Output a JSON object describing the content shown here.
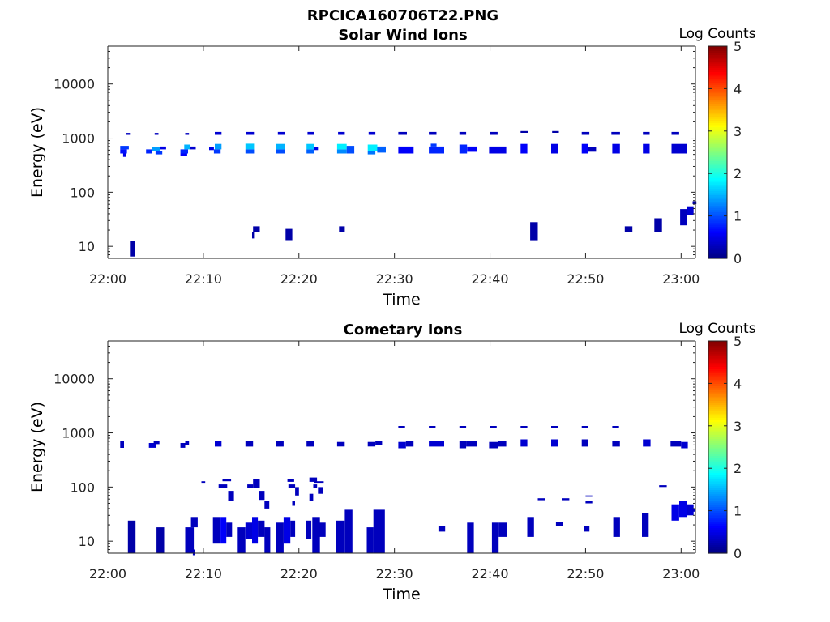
{
  "figure_title": "RPCICA160706T22.PNG",
  "colors": {
    "axis": "#222222",
    "background": "#ffffff"
  },
  "chart_data": [
    {
      "type": "heatmap",
      "title": "Solar Wind Ions",
      "xlabel": "Time",
      "ylabel": "Energy (eV)",
      "xticks": [
        "22:00",
        "22:10",
        "22:20",
        "22:30",
        "22:40",
        "22:50",
        "23:00"
      ],
      "yticks": [
        "10",
        "100",
        "1000",
        "10000"
      ],
      "yscale": "log",
      "ylim": [
        6,
        50000
      ],
      "xlim_minutes": [
        0,
        61.5
      ],
      "colorbar": {
        "label": "Log Counts",
        "ticks": [
          "0",
          "1",
          "2",
          "3",
          "4",
          "5"
        ],
        "range": [
          0,
          5
        ],
        "colormap": "jet"
      },
      "cells": [
        [
          1.9,
          2.4,
          1150,
          1250,
          0.3
        ],
        [
          4.9,
          5.3,
          1150,
          1250,
          0.3
        ],
        [
          8.1,
          8.5,
          1150,
          1250,
          0.3
        ],
        [
          11.2,
          11.9,
          1150,
          1300,
          0.4
        ],
        [
          14.5,
          15.3,
          1150,
          1300,
          0.4
        ],
        [
          17.8,
          18.5,
          1150,
          1300,
          0.4
        ],
        [
          20.9,
          21.6,
          1150,
          1300,
          0.4
        ],
        [
          24.1,
          24.8,
          1150,
          1300,
          0.4
        ],
        [
          27.3,
          28.0,
          1150,
          1300,
          0.4
        ],
        [
          30.4,
          31.3,
          1150,
          1300,
          0.3
        ],
        [
          33.6,
          34.4,
          1150,
          1300,
          0.3
        ],
        [
          36.8,
          37.5,
          1150,
          1300,
          0.3
        ],
        [
          40.0,
          40.8,
          1150,
          1300,
          0.3
        ],
        [
          43.2,
          44.0,
          1250,
          1350,
          0.2
        ],
        [
          46.5,
          47.2,
          1250,
          1350,
          0.2
        ],
        [
          49.6,
          50.4,
          1150,
          1300,
          0.3
        ],
        [
          52.7,
          53.6,
          1150,
          1300,
          0.3
        ],
        [
          56.0,
          56.7,
          1150,
          1300,
          0.3
        ],
        [
          59.0,
          59.8,
          1150,
          1300,
          0.3
        ],
        [
          1.3,
          2.2,
          620,
          720,
          0.9
        ],
        [
          1.3,
          2.0,
          520,
          620,
          0.7
        ],
        [
          1.6,
          1.9,
          450,
          520,
          0.5
        ],
        [
          4.0,
          4.6,
          520,
          620,
          0.8
        ],
        [
          4.6,
          5.5,
          570,
          680,
          1.4
        ],
        [
          5.0,
          5.7,
          500,
          570,
          0.9
        ],
        [
          5.5,
          6.1,
          620,
          700,
          0.5
        ],
        [
          7.6,
          8.4,
          520,
          620,
          0.8
        ],
        [
          8.0,
          8.6,
          620,
          760,
          1.5
        ],
        [
          7.6,
          8.3,
          470,
          520,
          0.6
        ],
        [
          8.6,
          9.2,
          620,
          700,
          0.4
        ],
        [
          11.1,
          11.8,
          520,
          620,
          0.9
        ],
        [
          11.2,
          11.9,
          620,
          780,
          1.4
        ],
        [
          10.6,
          11.1,
          600,
          680,
          0.5
        ],
        [
          14.4,
          15.3,
          520,
          620,
          1.0
        ],
        [
          14.4,
          15.3,
          620,
          790,
          1.6
        ],
        [
          17.6,
          18.5,
          520,
          620,
          1.0
        ],
        [
          17.6,
          18.5,
          620,
          780,
          1.5
        ],
        [
          20.8,
          21.6,
          520,
          620,
          1.1
        ],
        [
          20.8,
          21.6,
          620,
          780,
          1.6
        ],
        [
          21.6,
          22.0,
          600,
          680,
          0.5
        ],
        [
          24.0,
          25.0,
          520,
          620,
          1.3
        ],
        [
          24.0,
          25.0,
          620,
          780,
          1.8
        ],
        [
          25.0,
          25.8,
          520,
          720,
          1.0
        ],
        [
          27.2,
          28.0,
          500,
          580,
          1.2
        ],
        [
          27.2,
          28.2,
          580,
          760,
          1.8
        ],
        [
          28.2,
          29.1,
          540,
          700,
          1.1
        ],
        [
          30.4,
          32.0,
          520,
          700,
          0.6
        ],
        [
          33.6,
          35.2,
          520,
          700,
          0.8
        ],
        [
          33.8,
          34.4,
          700,
          790,
          0.9
        ],
        [
          36.8,
          37.6,
          520,
          760,
          0.8
        ],
        [
          37.6,
          38.6,
          560,
          700,
          0.6
        ],
        [
          39.9,
          41.7,
          520,
          700,
          0.5
        ],
        [
          43.2,
          43.9,
          520,
          780,
          0.6
        ],
        [
          46.4,
          47.1,
          520,
          780,
          0.5
        ],
        [
          49.6,
          50.3,
          520,
          780,
          0.6
        ],
        [
          50.3,
          51.1,
          560,
          680,
          0.3
        ],
        [
          52.8,
          53.6,
          520,
          780,
          0.5
        ],
        [
          56.0,
          56.7,
          520,
          780,
          0.5
        ],
        [
          59.0,
          60.6,
          520,
          780,
          0.4
        ],
        [
          2.4,
          2.8,
          6.5,
          12.5,
          0.2
        ],
        [
          15.2,
          15.9,
          18.5,
          23.5,
          0.2
        ],
        [
          15.1,
          15.3,
          14,
          18.5,
          0.2
        ],
        [
          18.6,
          19.3,
          13,
          21,
          0.2
        ],
        [
          24.2,
          24.8,
          18.5,
          23.5,
          0.2
        ],
        [
          44.2,
          45.0,
          13,
          28,
          0.2
        ],
        [
          54.1,
          54.9,
          18.5,
          23.5,
          0.2
        ],
        [
          57.2,
          58.0,
          18.5,
          33,
          0.2
        ],
        [
          59.9,
          60.6,
          24.5,
          49,
          0.3
        ],
        [
          60.6,
          61.3,
          38,
          55,
          0.4
        ],
        [
          61.2,
          61.6,
          60,
          68,
          0.2
        ]
      ]
    },
    {
      "type": "heatmap",
      "title": "Cometary Ions",
      "xlabel": "Time",
      "ylabel": "Energy (eV)",
      "xticks": [
        "22:00",
        "22:10",
        "22:20",
        "22:30",
        "22:40",
        "22:50",
        "23:00"
      ],
      "yticks": [
        "10",
        "100",
        "1000",
        "10000"
      ],
      "yscale": "log",
      "ylim": [
        6,
        50000
      ],
      "xlim_minutes": [
        0,
        61.5
      ],
      "colorbar": {
        "label": "Log Counts",
        "ticks": [
          "0",
          "1",
          "2",
          "3",
          "4",
          "5"
        ],
        "range": [
          0,
          5
        ],
        "colormap": "jet"
      },
      "cells": [
        [
          1.3,
          1.7,
          530,
          720,
          0.3
        ],
        [
          4.3,
          5.0,
          530,
          650,
          0.4
        ],
        [
          4.8,
          5.4,
          620,
          720,
          0.3
        ],
        [
          7.6,
          8.1,
          530,
          650,
          0.3
        ],
        [
          8.1,
          8.5,
          600,
          720,
          0.3
        ],
        [
          11.2,
          11.9,
          560,
          700,
          0.4
        ],
        [
          14.4,
          15.2,
          560,
          700,
          0.3
        ],
        [
          17.6,
          18.4,
          560,
          700,
          0.3
        ],
        [
          20.8,
          21.6,
          560,
          700,
          0.3
        ],
        [
          24.0,
          24.8,
          560,
          680,
          0.3
        ],
        [
          27.2,
          28.0,
          560,
          680,
          0.3
        ],
        [
          28.0,
          28.7,
          600,
          700,
          0.3
        ],
        [
          30.4,
          31.2,
          520,
          680,
          0.4
        ],
        [
          31.2,
          32.0,
          560,
          720,
          0.3
        ],
        [
          33.6,
          35.2,
          560,
          720,
          0.4
        ],
        [
          36.8,
          37.5,
          520,
          720,
          0.3
        ],
        [
          37.5,
          38.6,
          560,
          720,
          0.3
        ],
        [
          39.9,
          40.8,
          520,
          680,
          0.3
        ],
        [
          40.8,
          41.7,
          560,
          720,
          0.3
        ],
        [
          43.2,
          43.9,
          560,
          760,
          0.4
        ],
        [
          46.4,
          47.1,
          560,
          760,
          0.4
        ],
        [
          49.6,
          50.3,
          560,
          760,
          0.3
        ],
        [
          52.8,
          53.6,
          560,
          720,
          0.3
        ],
        [
          56.0,
          56.8,
          560,
          760,
          0.4
        ],
        [
          58.9,
          60.0,
          560,
          720,
          0.3
        ],
        [
          60.0,
          60.7,
          520,
          680,
          0.4
        ],
        [
          30.4,
          31.1,
          1220,
          1340,
          0.3
        ],
        [
          33.6,
          34.3,
          1220,
          1340,
          0.3
        ],
        [
          36.8,
          37.5,
          1220,
          1340,
          0.3
        ],
        [
          40.0,
          40.7,
          1220,
          1340,
          0.3
        ],
        [
          43.2,
          43.9,
          1220,
          1340,
          0.3
        ],
        [
          46.4,
          47.1,
          1220,
          1340,
          0.3
        ],
        [
          49.6,
          50.3,
          1220,
          1340,
          0.3
        ],
        [
          52.8,
          53.5,
          1220,
          1340,
          0.3
        ],
        [
          2.1,
          2.9,
          6,
          24,
          0.2
        ],
        [
          5.1,
          5.9,
          6,
          18,
          0.2
        ],
        [
          8.1,
          9.0,
          6,
          18,
          0.3
        ],
        [
          8.7,
          9.4,
          18,
          28,
          0.3
        ],
        [
          8.9,
          9.1,
          5.5,
          7,
          0.3
        ],
        [
          11.0,
          11.8,
          9,
          28,
          0.3
        ],
        [
          11.8,
          12.4,
          9,
          28,
          0.6
        ],
        [
          12.4,
          13.0,
          12,
          22,
          0.3
        ],
        [
          13.6,
          14.4,
          6,
          18,
          0.3
        ],
        [
          14.4,
          15.1,
          11,
          22,
          0.4
        ],
        [
          15.1,
          15.7,
          9,
          28,
          0.5
        ],
        [
          15.7,
          16.4,
          12,
          24,
          0.3
        ],
        [
          16.4,
          17.0,
          6,
          18,
          0.3
        ],
        [
          17.6,
          18.4,
          6,
          22,
          0.3
        ],
        [
          18.4,
          19.1,
          9,
          28,
          0.5
        ],
        [
          19.1,
          19.6,
          12,
          24,
          0.3
        ],
        [
          20.7,
          21.3,
          11,
          24,
          0.3
        ],
        [
          21.4,
          22.2,
          6,
          28,
          0.3
        ],
        [
          22.0,
          22.8,
          12,
          22,
          0.3
        ],
        [
          23.9,
          24.8,
          6,
          24,
          0.3
        ],
        [
          24.8,
          25.6,
          6,
          38,
          0.3
        ],
        [
          27.1,
          27.8,
          6,
          18,
          0.3
        ],
        [
          27.8,
          29.0,
          6,
          38,
          0.3
        ],
        [
          34.6,
          35.3,
          15,
          19,
          0.3
        ],
        [
          37.6,
          38.3,
          6,
          22,
          0.3
        ],
        [
          40.2,
          40.9,
          6,
          22,
          0.3
        ],
        [
          40.9,
          41.8,
          12,
          22,
          0.3
        ],
        [
          43.9,
          44.6,
          12,
          28,
          0.3
        ],
        [
          46.9,
          47.6,
          19,
          23,
          0.3
        ],
        [
          49.8,
          50.4,
          15,
          19,
          0.3
        ],
        [
          52.9,
          53.6,
          12,
          28,
          0.3
        ],
        [
          55.9,
          56.6,
          12,
          33,
          0.3
        ],
        [
          59.0,
          59.8,
          24,
          48,
          0.5
        ],
        [
          59.8,
          60.6,
          28,
          55,
          0.5
        ],
        [
          60.6,
          61.3,
          30,
          48,
          0.4
        ],
        [
          61.2,
          61.5,
          35,
          40,
          0.3
        ],
        [
          9.8,
          10.2,
          120,
          128,
          0.3
        ],
        [
          12.0,
          12.9,
          128,
          142,
          0.3
        ],
        [
          11.6,
          12.5,
          98,
          112,
          0.3
        ],
        [
          12.6,
          13.2,
          55,
          85,
          0.3
        ],
        [
          14.6,
          15.2,
          96,
          112,
          0.3
        ],
        [
          15.2,
          15.9,
          98,
          142,
          0.3
        ],
        [
          15.8,
          16.4,
          58,
          85,
          0.3
        ],
        [
          16.4,
          16.9,
          40,
          55,
          0.3
        ],
        [
          18.8,
          19.5,
          125,
          142,
          0.3
        ],
        [
          18.9,
          19.6,
          96,
          112,
          0.3
        ],
        [
          19.6,
          20.0,
          70,
          100,
          0.3
        ],
        [
          19.3,
          19.6,
          45,
          55,
          0.3
        ],
        [
          21.1,
          21.9,
          125,
          150,
          0.3
        ],
        [
          21.6,
          22.6,
          120,
          128,
          0.3
        ],
        [
          21.5,
          21.9,
          95,
          112,
          0.3
        ],
        [
          22.0,
          22.5,
          75,
          100,
          0.3
        ],
        [
          21.1,
          21.5,
          55,
          75,
          0.3
        ],
        [
          45.0,
          45.8,
          57,
          62,
          0.3
        ],
        [
          47.5,
          48.3,
          57,
          62,
          0.3
        ],
        [
          50.0,
          50.7,
          66,
          70,
          0.3
        ],
        [
          50.0,
          50.7,
          50,
          55,
          0.3
        ],
        [
          57.7,
          58.5,
          100,
          108,
          0.3
        ]
      ]
    }
  ]
}
